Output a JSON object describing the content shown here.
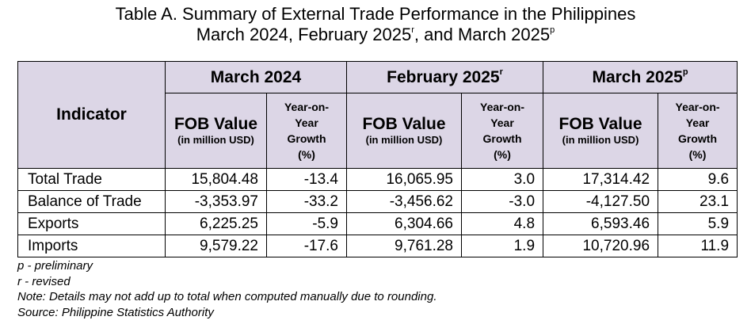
{
  "title": {
    "line1": "Table A. Summary of External Trade Performance in the Philippines",
    "line2_part1": "March 2024, February 2025",
    "line2_mark1": "r",
    "line2_part2": ", and March 2025",
    "line2_mark2": "p"
  },
  "table": {
    "indicator_header": "Indicator",
    "periods": [
      {
        "label": "March 2024",
        "mark": ""
      },
      {
        "label": "February 2025",
        "mark": "r"
      },
      {
        "label": "March 2025",
        "mark": "p"
      }
    ],
    "fob_label": "FOB Value",
    "fob_unit": "(in million USD)",
    "yoy_line1": "Year-on-",
    "yoy_line2": "Year",
    "yoy_line3": "Growth",
    "yoy_line4": "(%)",
    "rows": [
      {
        "indicator": "Total Trade",
        "values": [
          "15,804.48",
          "-13.4",
          "16,065.95",
          "3.0",
          "17,314.42",
          "9.6"
        ]
      },
      {
        "indicator": "Balance of Trade",
        "values": [
          "-3,353.97",
          "-33.2",
          "-3,456.62",
          "-3.0",
          "-4,127.50",
          "23.1"
        ]
      },
      {
        "indicator": "Exports",
        "values": [
          "6,225.25",
          "-5.9",
          "6,304.66",
          "4.8",
          "6,593.46",
          "5.9"
        ]
      },
      {
        "indicator": "Imports",
        "values": [
          "9,579.22",
          "-17.6",
          "9,761.28",
          "1.9",
          "10,720.96",
          "11.9"
        ]
      }
    ]
  },
  "notes": {
    "preliminary": "p - preliminary",
    "revised": "r - revised",
    "rounding": "Note: Details may not add up to total when computed manually due to rounding.",
    "source": "Source: Philippine Statistics Authority"
  }
}
